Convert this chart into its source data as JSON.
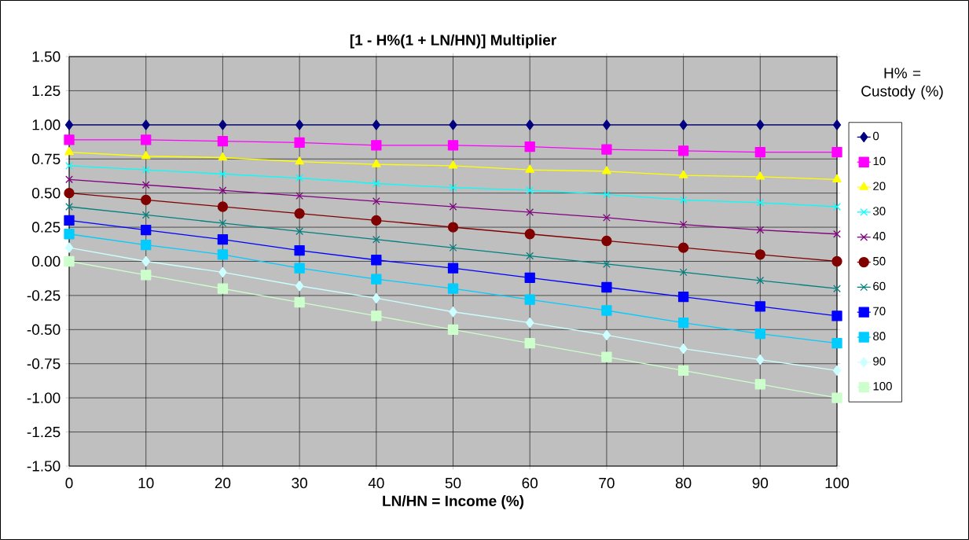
{
  "chart_data": {
    "type": "line",
    "title": "[1 - H%(1 + LN/HN)] Multiplier",
    "xlabel": "LN/HN = Income (%)",
    "legend_title": "H% = Custody (%)",
    "categories": [
      "0",
      "10",
      "20",
      "30",
      "40",
      "50",
      "60",
      "70",
      "80",
      "90",
      "100"
    ],
    "ylim": [
      -1.5,
      1.5
    ],
    "yticks": [
      {
        "value": -1.5,
        "label": "-1.50"
      },
      {
        "value": -1.25,
        "label": "-1.25"
      },
      {
        "value": -1.0,
        "label": "-1.00"
      },
      {
        "value": -0.75,
        "label": "-0.75"
      },
      {
        "value": -0.5,
        "label": "-0.50"
      },
      {
        "value": -0.25,
        "label": "-0.25"
      },
      {
        "value": 0,
        "label": "0.00"
      },
      {
        "value": 0.25,
        "label": "0.25"
      },
      {
        "value": 0.5,
        "label": "0.50"
      },
      {
        "value": 0.75,
        "label": "0.75"
      },
      {
        "value": 1.0,
        "label": "1.00"
      },
      {
        "value": 1.25,
        "label": "1.25"
      },
      {
        "value": 1.5,
        "label": "1.50"
      }
    ],
    "grid": true,
    "legend": "right",
    "series": [
      {
        "name": "0",
        "color": "#000080",
        "marker": "diamond",
        "values": [
          1.0,
          1.0,
          1.0,
          1.0,
          1.0,
          1.0,
          1.0,
          1.0,
          1.0,
          1.0,
          1.0
        ]
      },
      {
        "name": "10",
        "color": "#ff00ff",
        "marker": "square",
        "values": [
          0.89,
          0.89,
          0.88,
          0.87,
          0.85,
          0.85,
          0.84,
          0.82,
          0.81,
          0.8,
          0.8
        ]
      },
      {
        "name": "20",
        "color": "#ffff00",
        "marker": "triangle",
        "values": [
          0.8,
          0.77,
          0.76,
          0.73,
          0.71,
          0.7,
          0.67,
          0.66,
          0.63,
          0.62,
          0.6
        ]
      },
      {
        "name": "30",
        "color": "#00ffff",
        "marker": "cross",
        "values": [
          0.7,
          0.67,
          0.64,
          0.61,
          0.57,
          0.54,
          0.52,
          0.49,
          0.45,
          0.43,
          0.4
        ]
      },
      {
        "name": "40",
        "color": "#800080",
        "marker": "cross",
        "values": [
          0.6,
          0.56,
          0.52,
          0.48,
          0.44,
          0.4,
          0.36,
          0.32,
          0.27,
          0.23,
          0.2
        ]
      },
      {
        "name": "50",
        "color": "#800000",
        "marker": "circle",
        "values": [
          0.5,
          0.45,
          0.4,
          0.35,
          0.3,
          0.25,
          0.2,
          0.15,
          0.1,
          0.05,
          0.0
        ]
      },
      {
        "name": "60",
        "color": "#008080",
        "marker": "cross",
        "values": [
          0.4,
          0.34,
          0.28,
          0.22,
          0.16,
          0.1,
          0.04,
          -0.02,
          -0.08,
          -0.14,
          -0.2
        ]
      },
      {
        "name": "70",
        "color": "#0000ff",
        "marker": "square",
        "values": [
          0.3,
          0.23,
          0.16,
          0.08,
          0.01,
          -0.05,
          -0.12,
          -0.19,
          -0.26,
          -0.33,
          -0.4
        ]
      },
      {
        "name": "80",
        "color": "#00ccff",
        "marker": "square",
        "values": [
          0.2,
          0.12,
          0.05,
          -0.05,
          -0.13,
          -0.2,
          -0.28,
          -0.36,
          -0.45,
          -0.53,
          -0.6
        ]
      },
      {
        "name": "90",
        "color": "#ccffff",
        "marker": "diamond",
        "values": [
          0.1,
          0.0,
          -0.08,
          -0.18,
          -0.27,
          -0.37,
          -0.45,
          -0.54,
          -0.64,
          -0.72,
          -0.8
        ]
      },
      {
        "name": "100",
        "color": "#ccffcc",
        "marker": "square",
        "values": [
          0.0,
          -0.1,
          -0.2,
          -0.3,
          -0.4,
          -0.5,
          -0.6,
          -0.7,
          -0.8,
          -0.9,
          -1.0
        ]
      }
    ]
  }
}
